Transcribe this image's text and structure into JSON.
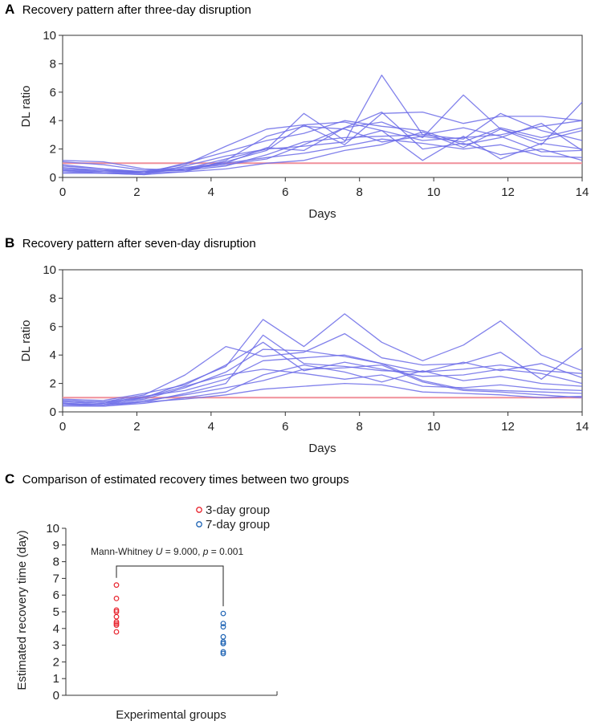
{
  "panels": [
    {
      "letter": "A",
      "title": "Recovery pattern after three-day disruption"
    },
    {
      "letter": "B",
      "title": "Recovery pattern after seven-day disruption"
    },
    {
      "letter": "C",
      "title": "Comparison of estimated recovery times between two groups"
    }
  ],
  "colors": {
    "series": "#6b6be8",
    "baseline": "#f0909a",
    "group3": "#e8242e",
    "group7": "#1f64b4",
    "axis": "#333333"
  },
  "chart_data": [
    {
      "type": "line",
      "title": "Recovery pattern after three-day disruption",
      "xlabel": "Days",
      "ylabel": "DL ratio",
      "xlim": [
        0,
        14
      ],
      "ylim": [
        0,
        10
      ],
      "xticks": [
        0,
        2,
        4,
        6,
        8,
        10,
        12,
        14
      ],
      "yticks": [
        0,
        2,
        4,
        6,
        8,
        10
      ],
      "x": [
        0,
        1.1,
        2.2,
        3.3,
        4.4,
        5.5,
        6.5,
        7.6,
        8.6,
        9.7,
        10.8,
        11.8,
        12.9,
        14
      ],
      "baseline": 1,
      "series": [
        {
          "name": "s1",
          "values": [
            1.2,
            1.1,
            0.6,
            0.5,
            1.1,
            1.9,
            3.7,
            3.9,
            3.3,
            2.6,
            2.8,
            3.0,
            3.6,
            4.0
          ]
        },
        {
          "name": "s2",
          "values": [
            0.5,
            0.3,
            0.2,
            0.8,
            1.5,
            2.0,
            2.2,
            2.5,
            7.2,
            3.0,
            2.7,
            4.5,
            3.3,
            2.6
          ]
        },
        {
          "name": "s3",
          "values": [
            0.6,
            0.5,
            0.4,
            0.9,
            2.2,
            3.4,
            3.7,
            2.3,
            4.5,
            4.6,
            3.8,
            4.3,
            4.3,
            4.0
          ]
        },
        {
          "name": "s4",
          "values": [
            0.9,
            0.6,
            0.4,
            0.6,
            1.3,
            2.0,
            4.5,
            2.6,
            3.3,
            1.2,
            2.9,
            1.3,
            2.4,
            2.0
          ]
        },
        {
          "name": "s5",
          "values": [
            0.4,
            0.3,
            0.3,
            0.6,
            1.0,
            2.1,
            1.9,
            3.5,
            3.9,
            2.8,
            5.8,
            3.4,
            2.3,
            5.3
          ]
        },
        {
          "name": "s6",
          "values": [
            0.7,
            0.5,
            0.3,
            0.4,
            0.6,
            1.0,
            1.2,
            1.9,
            2.3,
            3.2,
            2.1,
            3.4,
            2.6,
            3.3
          ]
        },
        {
          "name": "s7",
          "values": [
            0.5,
            0.4,
            0.4,
            0.6,
            0.9,
            1.3,
            2.3,
            3.5,
            4.6,
            2.0,
            2.4,
            1.6,
            2.0,
            1.2
          ]
        },
        {
          "name": "s8",
          "values": [
            0.6,
            0.4,
            0.3,
            1.0,
            1.8,
            2.6,
            3.1,
            4.0,
            3.6,
            3.3,
            2.3,
            2.8,
            3.8,
            1.9
          ]
        },
        {
          "name": "s9",
          "values": [
            0.8,
            0.6,
            0.4,
            0.5,
            0.8,
            1.6,
            2.5,
            2.8,
            2.9,
            3.0,
            3.5,
            2.9,
            1.8,
            1.9
          ]
        },
        {
          "name": "s10",
          "values": [
            0.3,
            0.3,
            0.2,
            0.4,
            1.2,
            2.9,
            3.6,
            3.4,
            2.5,
            2.9,
            2.5,
            3.5,
            2.8,
            3.5
          ]
        },
        {
          "name": "s11",
          "values": [
            1.1,
            0.9,
            0.5,
            0.7,
            1.0,
            1.4,
            1.7,
            2.2,
            2.7,
            2.4,
            2.0,
            2.3,
            1.5,
            1.4
          ]
        }
      ]
    },
    {
      "type": "line",
      "title": "Recovery pattern after seven-day disruption",
      "xlabel": "Days",
      "ylabel": "DL ratio",
      "xlim": [
        0,
        14
      ],
      "ylim": [
        0,
        10
      ],
      "xticks": [
        0,
        2,
        4,
        6,
        8,
        10,
        12,
        14
      ],
      "yticks": [
        0,
        2,
        4,
        6,
        8,
        10
      ],
      "x": [
        0,
        1.1,
        2.2,
        3.3,
        4.4,
        5.4,
        6.5,
        7.6,
        8.6,
        9.7,
        10.8,
        11.8,
        12.9,
        14
      ],
      "baseline": 1,
      "series": [
        {
          "name": "s1",
          "values": [
            0.6,
            0.5,
            1.0,
            2.0,
            3.2,
            6.5,
            4.6,
            6.9,
            4.9,
            3.6,
            4.7,
            6.4,
            4.0,
            2.9
          ]
        },
        {
          "name": "s2",
          "values": [
            0.8,
            0.7,
            1.2,
            2.6,
            4.6,
            3.9,
            4.2,
            5.5,
            3.8,
            3.3,
            3.4,
            4.2,
            2.3,
            4.5
          ]
        },
        {
          "name": "s3",
          "values": [
            0.5,
            0.4,
            0.7,
            1.3,
            2.0,
            5.4,
            3.4,
            3.2,
            2.9,
            2.8,
            3.5,
            2.9,
            3.4,
            2.4
          ]
        },
        {
          "name": "s4",
          "values": [
            0.7,
            0.6,
            0.9,
            1.7,
            2.8,
            4.4,
            4.3,
            3.9,
            3.4,
            2.2,
            1.6,
            1.5,
            1.4,
            1.3
          ]
        },
        {
          "name": "s5",
          "values": [
            0.9,
            0.8,
            1.3,
            1.9,
            3.3,
            4.9,
            2.9,
            3.5,
            3.0,
            2.5,
            2.6,
            3.0,
            2.7,
            2.0
          ]
        },
        {
          "name": "s6",
          "values": [
            0.4,
            0.4,
            0.6,
            1.0,
            1.4,
            2.6,
            3.3,
            2.8,
            2.1,
            2.9,
            2.2,
            2.5,
            2.0,
            1.8
          ]
        },
        {
          "name": "s7",
          "values": [
            0.6,
            0.5,
            0.8,
            1.2,
            1.7,
            2.2,
            3.0,
            3.1,
            3.3,
            2.1,
            1.5,
            1.4,
            1.2,
            1.0
          ]
        },
        {
          "name": "s8",
          "values": [
            0.5,
            0.5,
            0.7,
            0.9,
            1.2,
            1.6,
            1.8,
            2.0,
            1.9,
            1.4,
            1.3,
            1.2,
            1.0,
            1.1
          ]
        },
        {
          "name": "s9",
          "values": [
            0.7,
            0.6,
            1.1,
            1.5,
            2.3,
            3.6,
            3.8,
            4.0,
            3.4,
            2.8,
            3.0,
            3.3,
            2.9,
            2.7
          ]
        },
        {
          "name": "s10",
          "values": [
            0.8,
            0.7,
            1.0,
            1.8,
            2.6,
            3.0,
            2.7,
            2.3,
            2.6,
            1.8,
            1.7,
            1.9,
            1.6,
            1.5
          ]
        }
      ]
    },
    {
      "type": "scatter",
      "title": "Comparison of estimated recovery times between two groups",
      "xlabel": "Experimental groups",
      "ylabel": "Estimated recovery time (day)",
      "ylim": [
        0,
        10
      ],
      "yticks": [
        0,
        1,
        2,
        3,
        4,
        5,
        6,
        7,
        8,
        9,
        10
      ],
      "series": [
        {
          "name": "3-day group",
          "values": [
            6.6,
            5.8,
            5.1,
            5.0,
            4.7,
            4.4,
            4.3,
            4.2,
            3.8
          ]
        },
        {
          "name": "7-day group",
          "values": [
            4.9,
            4.3,
            4.1,
            3.5,
            3.2,
            3.1,
            3.1,
            2.6,
            2.5
          ]
        }
      ],
      "annotation": {
        "prefix": "Mann-Whitney ",
        "u_symbol": "U",
        "middle": " = 9.000, ",
        "p_symbol": "p",
        "suffix": " = 0.001"
      },
      "legend_position": "top"
    }
  ]
}
